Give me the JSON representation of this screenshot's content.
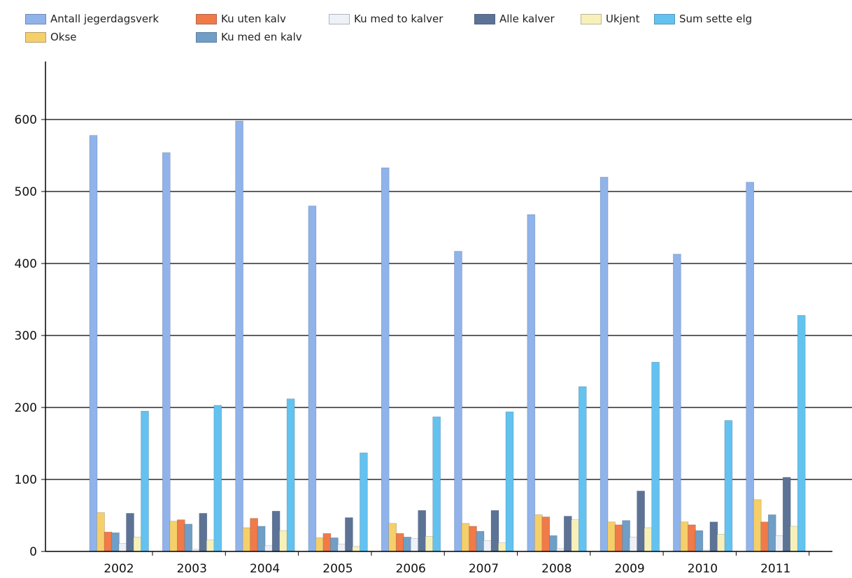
{
  "chart_data": {
    "type": "bar",
    "title": "",
    "xlabel": "",
    "ylabel": "",
    "ylim": [
      0,
      650
    ],
    "yticks": [
      0,
      100,
      200,
      300,
      400,
      500,
      600
    ],
    "grid": true,
    "legend_position": "top",
    "categories": [
      "2002",
      "2003",
      "2004",
      "2005",
      "2006",
      "2007",
      "2008",
      "2009",
      "2010",
      "2011"
    ],
    "series": [
      {
        "name": "Antall jegerdagsverk",
        "color": "#8fb3ea",
        "values": [
          578,
          554,
          598,
          480,
          533,
          417,
          468,
          520,
          413,
          513
        ]
      },
      {
        "name": "Okse",
        "color": "#f5cf6a",
        "values": [
          54,
          42,
          33,
          19,
          39,
          39,
          51,
          41,
          41,
          72
        ]
      },
      {
        "name": "Ku uten kalv",
        "color": "#f07a48",
        "values": [
          27,
          44,
          46,
          25,
          25,
          35,
          48,
          37,
          37,
          41
        ]
      },
      {
        "name": "Ku med en kalv",
        "color": "#6f9ec6",
        "values": [
          26,
          38,
          35,
          19,
          20,
          28,
          22,
          43,
          29,
          51
        ]
      },
      {
        "name": "Ku med to kalver",
        "color": "#eef1f8",
        "values": [
          11,
          3,
          8,
          10,
          18,
          15,
          4,
          20,
          2,
          22
        ]
      },
      {
        "name": "Alle kalver",
        "color": "#5c7396",
        "values": [
          53,
          53,
          56,
          47,
          57,
          57,
          49,
          84,
          41,
          103
        ]
      },
      {
        "name": "Ukjent",
        "color": "#f7f1b9",
        "values": [
          20,
          16,
          29,
          7,
          21,
          12,
          44,
          33,
          24,
          35
        ]
      },
      {
        "name": "Sum sette elg",
        "color": "#63c2ef",
        "values": [
          195,
          203,
          212,
          137,
          187,
          194,
          229,
          263,
          182,
          328
        ]
      }
    ]
  }
}
